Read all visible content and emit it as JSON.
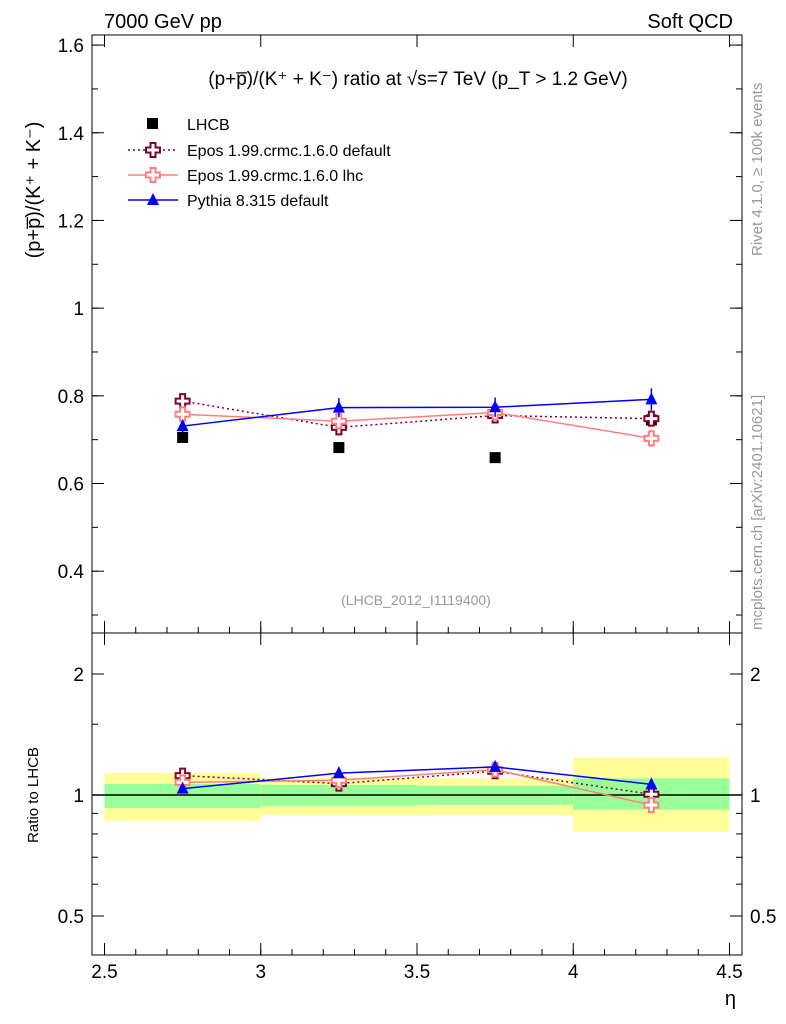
{
  "header": {
    "left": "7000 GeV pp",
    "right": "Soft QCD"
  },
  "side": {
    "rivet": "Rivet 4.1.0, ≥ 100k events",
    "mcplots": "mcplots.cern.ch [arXiv:2401.10621]"
  },
  "chart_data": {
    "type": "scatter",
    "title": "(p+p̅)/(K⁺ + K⁻) ratio at √s=7 TeV (p_T > 1.2 GeV)",
    "ylabel": "(p+p̅)/(K⁺ + K⁻)",
    "ratio_ylabel": "Ratio to LHCB",
    "xlabel": "η",
    "analysis": "(LHCB_2012_I1119400)",
    "xlim": [
      2.46,
      4.54
    ],
    "ylim": [
      0.259,
      1.623
    ],
    "ratio_ylim": [
      0.42,
      2.42
    ],
    "xticks": [
      "2.5",
      "3",
      "3.5",
      "4",
      "4.5"
    ],
    "yticks": [
      "0.4",
      "0.6",
      "0.8",
      "1",
      "1.2",
      "1.4",
      "1.6"
    ],
    "ratio_yticks": [
      "0.5",
      "1",
      "2"
    ],
    "bins": [
      [
        2.5,
        3.0
      ],
      [
        3.0,
        3.5
      ],
      [
        3.5,
        4.0
      ],
      [
        4.0,
        4.5
      ]
    ],
    "x": [
      2.75,
      3.25,
      3.75,
      4.25
    ],
    "legend_position": "top-left",
    "data": {
      "name": "LHCB",
      "values": [
        0.705,
        0.682,
        0.659,
        0.745
      ],
      "ratio_band_inner": [
        [
          0.928,
          1.065
        ],
        [
          0.94,
          1.06
        ],
        [
          0.945,
          1.055
        ],
        [
          0.92,
          1.1
        ]
      ],
      "ratio_band_outer": [
        [
          0.862,
          1.134
        ],
        [
          0.89,
          1.1
        ],
        [
          0.89,
          1.1
        ],
        [
          0.81,
          1.24
        ]
      ]
    },
    "series": [
      {
        "name": "Epos 1.99.crmc.1.6.0 default",
        "values": [
          0.788,
          0.728,
          0.755,
          0.748
        ],
        "errors": [
          0.012,
          0.012,
          0.012,
          0.012
        ],
        "color": "#800030",
        "style": "dotted",
        "marker": "cross-open"
      },
      {
        "name": "Epos 1.99.crmc.1.6.0 lhc",
        "values": [
          0.758,
          0.742,
          0.762,
          0.703
        ],
        "errors": [
          0.008,
          0.008,
          0.008,
          0.02
        ],
        "color": "#ff7f7f",
        "style": "solid",
        "marker": "cross-open"
      },
      {
        "name": "Pythia 8.315 default",
        "values": [
          0.731,
          0.773,
          0.774,
          0.792
        ],
        "errors": [
          0.015,
          0.022,
          0.022,
          0.025
        ],
        "color": "#0000ff",
        "style": "solid",
        "marker": "triangle"
      }
    ]
  }
}
